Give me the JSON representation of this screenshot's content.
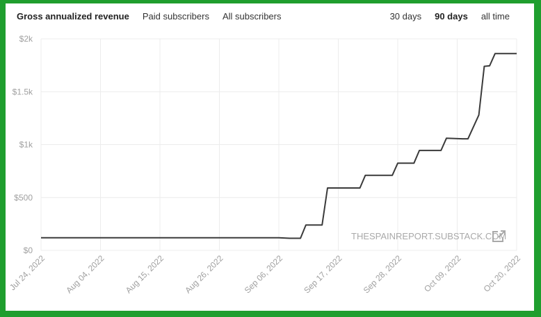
{
  "header": {
    "metric_tabs": [
      {
        "label": "Gross annualized revenue",
        "active": true
      },
      {
        "label": "Paid subscribers",
        "active": false
      },
      {
        "label": "All subscribers",
        "active": false
      }
    ],
    "range_tabs": [
      {
        "label": "30 days",
        "active": false
      },
      {
        "label": "90 days",
        "active": true
      },
      {
        "label": "all time",
        "active": false
      }
    ]
  },
  "watermark": {
    "text": "THESPAINREPORT.SUBSTACK.COM",
    "icon": "external-link-icon"
  },
  "colors": {
    "frame": "#1f9e2e",
    "line": "#3a3a3a",
    "grid": "#ececec",
    "label": "#a0a0a0"
  },
  "chart_data": {
    "type": "line",
    "y_tick_labels": [
      "$0",
      "$500",
      "$1k",
      "$1.5k",
      "$2k"
    ],
    "y_ticks": [
      0,
      500,
      1000,
      1500,
      2000
    ],
    "ylim": [
      0,
      2000
    ],
    "x_tick_labels": [
      "Jul 24, 2022",
      "Aug 04, 2022",
      "Aug 15, 2022",
      "Aug 26, 2022",
      "Sep 06, 2022",
      "Sep 17, 2022",
      "Sep 28, 2022",
      "Oct 09, 2022",
      "Oct 20, 2022"
    ],
    "x_ticks": [
      "2022-07-24",
      "2022-08-04",
      "2022-08-15",
      "2022-08-26",
      "2022-09-06",
      "2022-09-17",
      "2022-09-28",
      "2022-10-09",
      "2022-10-20"
    ],
    "xlim": [
      "2022-07-24",
      "2022-10-20"
    ],
    "grid": true,
    "series": [
      {
        "name": "",
        "x": [
          "2022-07-24",
          "2022-09-06",
          "2022-09-08",
          "2022-09-10",
          "2022-09-11",
          "2022-09-14",
          "2022-09-15",
          "2022-09-21",
          "2022-09-22",
          "2022-09-27",
          "2022-09-28",
          "2022-10-01",
          "2022-10-02",
          "2022-10-06",
          "2022-10-07",
          "2022-10-10",
          "2022-10-11",
          "2022-10-13",
          "2022-10-14",
          "2022-10-15",
          "2022-10-16",
          "2022-10-20"
        ],
        "y": [
          120,
          120,
          115,
          115,
          240,
          240,
          590,
          590,
          710,
          710,
          825,
          825,
          945,
          945,
          1060,
          1055,
          1055,
          1280,
          1740,
          1745,
          1860,
          1860
        ]
      }
    ]
  }
}
